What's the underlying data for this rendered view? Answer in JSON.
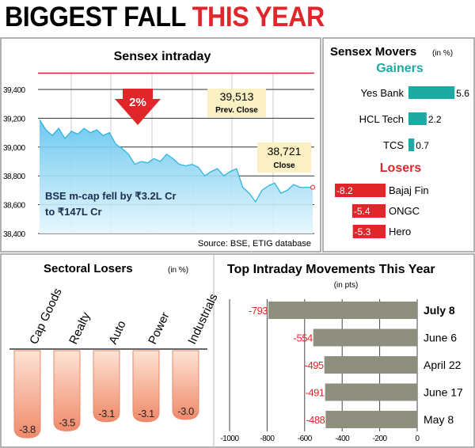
{
  "title": {
    "part1": "BIGGEST FALL",
    "part2": "THIS YEAR"
  },
  "colors": {
    "red": "#e0262a",
    "teal": "#1fa9a3",
    "gray_bar": "#8f8f7f",
    "salmon": "#f4a183",
    "area": "#bfe6f7",
    "line": "#2fb5de",
    "note_bg": "#fbf0c4"
  },
  "chart_data": [
    {
      "type": "area",
      "title": "Sensex intraday",
      "ylim": [
        38400,
        39513
      ],
      "yticks": [
        "39,400",
        "39,200",
        "39,000",
        "38,800",
        "38,600",
        "38,400"
      ],
      "ytick_values": [
        39400,
        39200,
        39000,
        38800,
        38600,
        38400
      ],
      "values": [
        39190,
        39120,
        39080,
        39130,
        39060,
        39110,
        39090,
        39130,
        39100,
        39120,
        39080,
        39100,
        39020,
        38990,
        38950,
        38880,
        38900,
        38890,
        38920,
        38900,
        38950,
        38920,
        38880,
        38870,
        38880,
        38860,
        38800,
        38830,
        38850,
        38800,
        38830,
        38850,
        38720,
        38680,
        38620,
        38700,
        38730,
        38750,
        38680,
        38700,
        38740,
        38720,
        38720,
        38721
      ],
      "prev_close": {
        "value": 39513,
        "label": "39,513",
        "caption": "Prev. Close"
      },
      "close": {
        "value": 38721,
        "label": "38,721",
        "caption": "Close"
      },
      "badge": "2%",
      "annotation": [
        "BSE m-cap fell by ₹3.2L Cr",
        "to ₹147L Cr"
      ],
      "source": "Source: BSE, ETIG database"
    },
    {
      "type": "bar",
      "title": "Sensex Movers",
      "unit": "(in %)",
      "gainers_label": "Gainers",
      "losers_label": "Losers",
      "gainers": [
        {
          "name": "Yes Bank",
          "value": 5.6,
          "label": "5.6"
        },
        {
          "name": "HCL Tech",
          "value": 2.2,
          "label": "2.2"
        },
        {
          "name": "TCS",
          "value": 0.7,
          "label": "0.7"
        }
      ],
      "losers": [
        {
          "name": "Bajaj Fin",
          "value": -8.2,
          "label": "-8.2"
        },
        {
          "name": "ONGC",
          "value": -5.4,
          "label": "-5.4"
        },
        {
          "name": "Hero",
          "value": -5.3,
          "label": "-5.3"
        }
      ]
    },
    {
      "type": "bar",
      "title": "Sectoral Losers",
      "unit": "(in %)",
      "categories": [
        "Cap Goods",
        "Realty",
        "Auto",
        "Power",
        "Industrials"
      ],
      "values": [
        -3.8,
        -3.5,
        -3.1,
        -3.1,
        -3.0
      ],
      "labels": [
        "-3.8",
        "-3.5",
        "-3.1",
        "-3.1",
        "-3.0"
      ]
    },
    {
      "type": "bar",
      "title": "Top Intraday Movements This Year",
      "unit": "(in pts)",
      "categories": [
        "July 8",
        "June 6",
        "April 22",
        "June 17",
        "May 8"
      ],
      "values": [
        -793,
        -554,
        -495,
        -491,
        -488
      ],
      "labels": [
        "-793",
        "-554",
        "-495",
        "-491",
        "-488"
      ],
      "xlim": [
        -1000,
        0
      ],
      "xticks": [
        "-1000",
        "-800",
        "-600",
        "-400",
        "-200",
        "0"
      ],
      "xtick_values": [
        -1000,
        -800,
        -600,
        -400,
        -200,
        0
      ]
    }
  ]
}
